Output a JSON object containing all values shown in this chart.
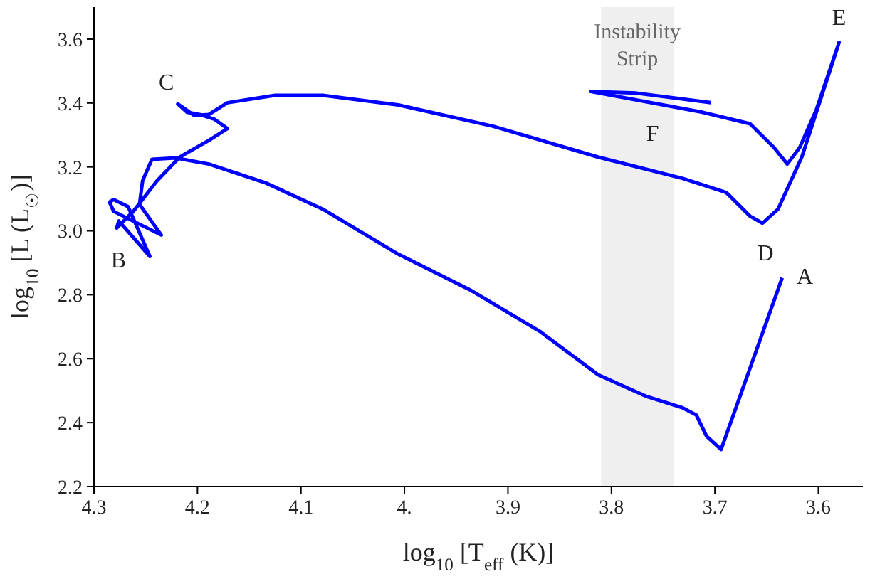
{
  "chart_data": {
    "type": "line",
    "xlabel": "log$_{10}$ [T$_{eff}$ (K)]",
    "ylabel": "log$_{10}$ [L (L$_{☉}$)]",
    "xlim": [
      4.3,
      3.557
    ],
    "ylim": [
      2.2,
      3.7
    ],
    "xticks": [
      4.3,
      4.2,
      4.1,
      {
        "value": 4,
        "label": "4."
      },
      3.9,
      3.8,
      3.7,
      3.6
    ],
    "yticks": [
      2.2,
      2.4,
      2.6,
      2.8,
      {
        "value": 3,
        "label": "3.0"
      },
      3.2,
      3.4,
      3.6
    ],
    "grid": false,
    "marker": "none",
    "line_style": "solid",
    "series": [
      {
        "color": "#0000ff",
        "x": [
          3.635,
          3.694,
          3.708,
          3.718,
          3.731,
          3.767,
          3.813,
          3.868,
          3.937,
          4.006,
          4.079,
          4.134,
          4.189,
          4.221,
          4.244,
          4.253,
          4.256,
          4.235,
          4.281,
          4.285,
          4.281,
          4.267,
          4.246,
          4.276,
          4.278,
          4.262,
          4.239,
          4.217,
          4.189,
          4.171,
          4.184,
          4.198,
          4.21,
          4.219,
          4.203,
          4.189,
          4.171,
          4.125,
          4.079,
          4.006,
          3.914,
          3.813,
          3.731,
          3.689,
          3.666,
          3.654,
          3.639,
          3.616,
          3.58,
          3.602,
          3.618,
          3.63,
          3.643,
          3.666,
          3.712,
          3.82,
          3.776,
          3.704
        ],
        "values": [
          2.853,
          2.316,
          2.357,
          2.424,
          2.446,
          2.483,
          2.55,
          2.683,
          2.816,
          2.927,
          3.068,
          3.15,
          3.209,
          3.228,
          3.224,
          3.157,
          3.083,
          2.987,
          3.061,
          3.09,
          3.098,
          3.076,
          2.92,
          3.031,
          3.009,
          3.061,
          3.157,
          3.231,
          3.283,
          3.32,
          3.35,
          3.364,
          3.371,
          3.397,
          3.361,
          3.364,
          3.401,
          3.424,
          3.424,
          3.394,
          3.327,
          3.231,
          3.164,
          3.12,
          3.046,
          3.024,
          3.068,
          3.231,
          3.59,
          3.379,
          3.261,
          3.209,
          3.261,
          3.335,
          3.371,
          3.436,
          3.431,
          3.401
        ]
      }
    ],
    "bands": [
      {
        "axis": "x",
        "from": 3.81,
        "to": 3.74,
        "label": "Instability Strip",
        "color": "#efefef"
      }
    ],
    "annotations": [
      {
        "text": "A",
        "x": 3.635,
        "y": 2.853
      },
      {
        "text": "B",
        "x": 4.246,
        "y": 2.92
      },
      {
        "text": "C",
        "x": 4.219,
        "y": 3.397
      },
      {
        "text": "D",
        "x": 3.654,
        "y": 3.024
      },
      {
        "text": "E",
        "x": 3.58,
        "y": 3.59
      },
      {
        "text": "F",
        "x": 3.712,
        "y": 3.371
      }
    ]
  }
}
